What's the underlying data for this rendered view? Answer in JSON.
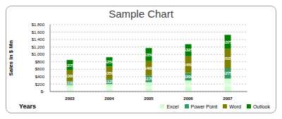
{
  "chart_data": {
    "type": "bar",
    "stacked": true,
    "title": "Sample Chart",
    "x_label": "Years",
    "y_label": "Sales in $ Mn",
    "categories": [
      "2003",
      "2004",
      "2005",
      "2006",
      "2007"
    ],
    "series": [
      {
        "name": "Excel",
        "color": "#ccffcc",
        "values": [
          175,
          200,
          250,
          300,
          350
        ],
        "value_labels": [
          "$175",
          "$200",
          "$250",
          "$300",
          "$350"
        ]
      },
      {
        "name": "Power Point",
        "color": "#339966",
        "values": [
          100,
          125,
          170,
          200,
          275
        ],
        "value_labels": [
          "$100",
          "$125",
          "$170",
          "$200",
          "$275"
        ]
      },
      {
        "name": "Word",
        "color": "#808000",
        "values": [
          300,
          350,
          400,
          450,
          525
        ],
        "value_labels": [
          "$300",
          "$350",
          "$400",
          "$450",
          "$525"
        ]
      },
      {
        "name": "Outlook",
        "color": "#008000",
        "values": [
          275,
          250,
          350,
          325,
          375
        ],
        "value_labels": [
          "$275",
          "$250",
          "$350",
          "$325",
          "$375"
        ]
      }
    ],
    "ylim": [
      0,
      1800
    ],
    "yticks": [
      {
        "value": 0,
        "label": "$-"
      },
      {
        "value": 200,
        "label": "$200"
      },
      {
        "value": 400,
        "label": "$400"
      },
      {
        "value": 600,
        "label": "$600"
      },
      {
        "value": 800,
        "label": "$800"
      },
      {
        "value": 1000,
        "label": "$1,000"
      },
      {
        "value": 1200,
        "label": "$1,200"
      },
      {
        "value": 1400,
        "label": "$1,400"
      },
      {
        "value": 1600,
        "label": "$1,600"
      },
      {
        "value": 1800,
        "label": "$1,800"
      }
    ],
    "grid": true,
    "legend": "bottom right",
    "data_labels": true
  }
}
